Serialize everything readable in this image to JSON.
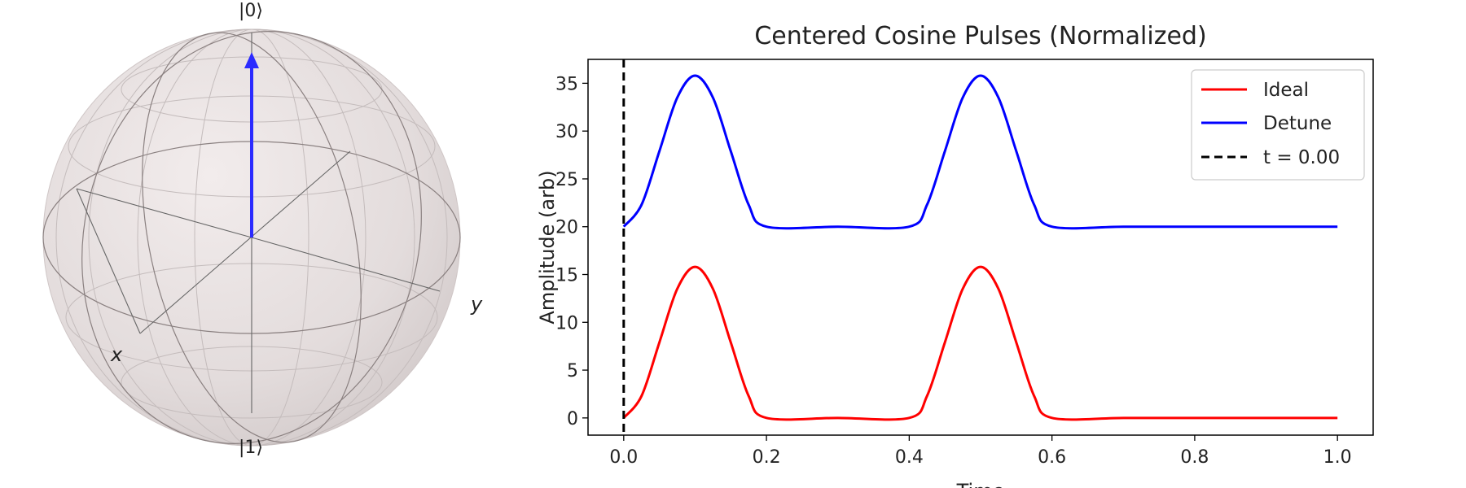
{
  "bloch": {
    "label_top": "|0⟩",
    "label_bottom": "|1⟩",
    "label_x": "x",
    "label_y": "y",
    "vector_color": "#2b2bff"
  },
  "chart_data": {
    "type": "line",
    "title": "Centered Cosine Pulses (Normalized)",
    "xlabel": "Time",
    "ylabel": "Amplitude (arb)",
    "xlim": [
      -0.05,
      1.05
    ],
    "ylim": [
      -1.8,
      37.5
    ],
    "xticks": [
      0.0,
      0.2,
      0.4,
      0.6,
      0.8,
      1.0
    ],
    "xtick_labels": [
      "0.0",
      "0.2",
      "0.4",
      "0.6",
      "0.8",
      "1.0"
    ],
    "yticks": [
      0,
      5,
      10,
      15,
      20,
      25,
      30,
      35
    ],
    "ytick_labels": [
      "0",
      "5",
      "10",
      "15",
      "20",
      "25",
      "30",
      "35"
    ],
    "legend_position": "top-right",
    "grid": false,
    "series": [
      {
        "name": "Ideal",
        "color": "#ff0000",
        "x": [
          0.0,
          0.025,
          0.05,
          0.075,
          0.1,
          0.125,
          0.15,
          0.175,
          0.2,
          0.3,
          0.4,
          0.425,
          0.45,
          0.475,
          0.5,
          0.525,
          0.55,
          0.575,
          0.6,
          0.7,
          0.8,
          0.9,
          1.0
        ],
        "y": [
          0.0,
          2.3,
          7.9,
          13.5,
          15.8,
          13.5,
          7.9,
          2.3,
          0.0,
          0.0,
          0.0,
          2.3,
          7.9,
          13.5,
          15.8,
          13.5,
          7.9,
          2.3,
          0.0,
          0.0,
          0.0,
          0.0,
          0.0
        ]
      },
      {
        "name": "Detune",
        "color": "#0000ff",
        "x": [
          0.0,
          0.025,
          0.05,
          0.075,
          0.1,
          0.125,
          0.15,
          0.175,
          0.2,
          0.3,
          0.4,
          0.425,
          0.45,
          0.475,
          0.5,
          0.525,
          0.55,
          0.575,
          0.6,
          0.7,
          0.8,
          0.9,
          1.0
        ],
        "y": [
          20.0,
          22.3,
          27.9,
          33.5,
          35.8,
          33.5,
          27.9,
          22.3,
          20.0,
          20.0,
          20.0,
          22.3,
          27.9,
          33.5,
          35.8,
          33.5,
          27.9,
          22.3,
          20.0,
          20.0,
          20.0,
          20.0,
          20.0
        ]
      }
    ],
    "marker_line": {
      "name": "t = 0.00",
      "x": 0.0,
      "color": "#000000"
    }
  }
}
